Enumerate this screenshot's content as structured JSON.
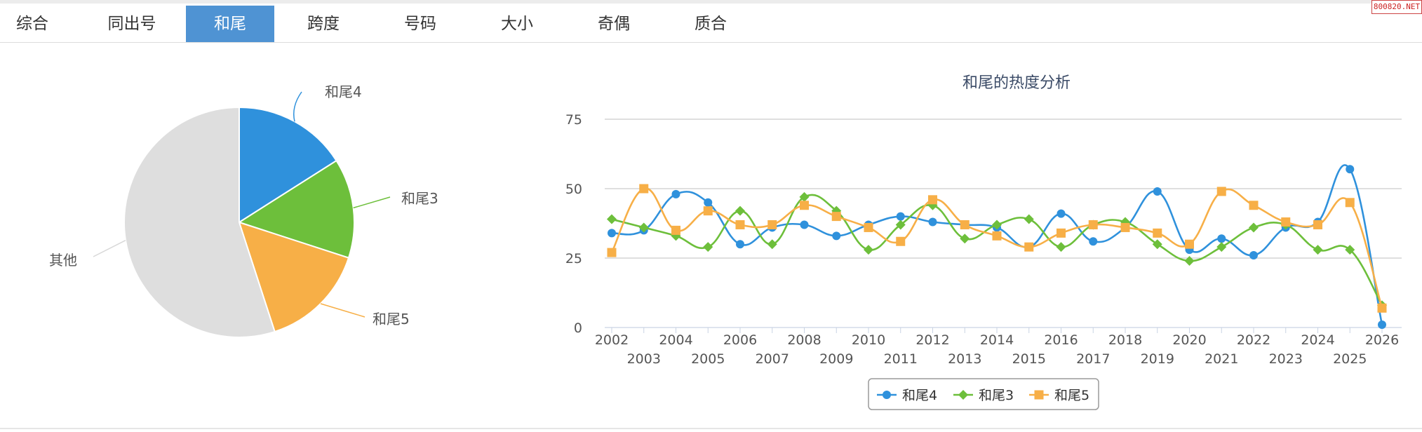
{
  "watermark": "800820.NET",
  "tabs": [
    {
      "label": "综合",
      "active": false
    },
    {
      "label": "同出号",
      "active": false
    },
    {
      "label": "和尾",
      "active": true
    },
    {
      "label": "跨度",
      "active": false
    },
    {
      "label": "号码",
      "active": false
    },
    {
      "label": "大小",
      "active": false
    },
    {
      "label": "奇偶",
      "active": false
    },
    {
      "label": "质合",
      "active": false
    }
  ],
  "chart_data": [
    {
      "type": "pie",
      "title": "",
      "slices": [
        {
          "name": "和尾4",
          "value": 16,
          "color": "#2f91dc"
        },
        {
          "name": "和尾3",
          "value": 14,
          "color": "#6dbf3b"
        },
        {
          "name": "和尾5",
          "value": 15,
          "color": "#f7af47"
        },
        {
          "name": "其他",
          "value": 55,
          "color": "#dedede"
        }
      ]
    },
    {
      "type": "line",
      "title": "和尾的热度分析",
      "xlabel": "",
      "ylabel": "",
      "ylim": [
        0,
        75
      ],
      "yticks": [
        0,
        25,
        50,
        75
      ],
      "grid": true,
      "legend": "bottom-center",
      "x": [
        "2002",
        "2003",
        "2004",
        "2005",
        "2006",
        "2007",
        "2008",
        "2009",
        "2010",
        "2011",
        "2012",
        "2013",
        "2014",
        "2015",
        "2016",
        "2017",
        "2018",
        "2019",
        "2020",
        "2021",
        "2022",
        "2023",
        "2024",
        "2025",
        "2026"
      ],
      "series": [
        {
          "name": "和尾4",
          "color": "#2f91dc",
          "marker": "circle",
          "values": [
            34,
            35,
            48,
            45,
            30,
            36,
            37,
            33,
            37,
            40,
            38,
            37,
            36,
            29,
            41,
            31,
            36,
            49,
            28,
            32,
            26,
            36,
            38,
            57,
            1
          ]
        },
        {
          "name": "和尾3",
          "color": "#6dbf3b",
          "marker": "diamond",
          "values": [
            39,
            36,
            33,
            29,
            42,
            30,
            47,
            42,
            28,
            37,
            44,
            32,
            37,
            39,
            29,
            37,
            38,
            30,
            24,
            29,
            36,
            37,
            28,
            28,
            8
          ]
        },
        {
          "name": "和尾5",
          "color": "#f7af47",
          "marker": "square",
          "values": [
            27,
            50,
            35,
            42,
            37,
            37,
            44,
            40,
            36,
            31,
            46,
            37,
            33,
            29,
            34,
            37,
            36,
            34,
            30,
            49,
            44,
            38,
            37,
            45,
            7
          ]
        }
      ]
    }
  ]
}
